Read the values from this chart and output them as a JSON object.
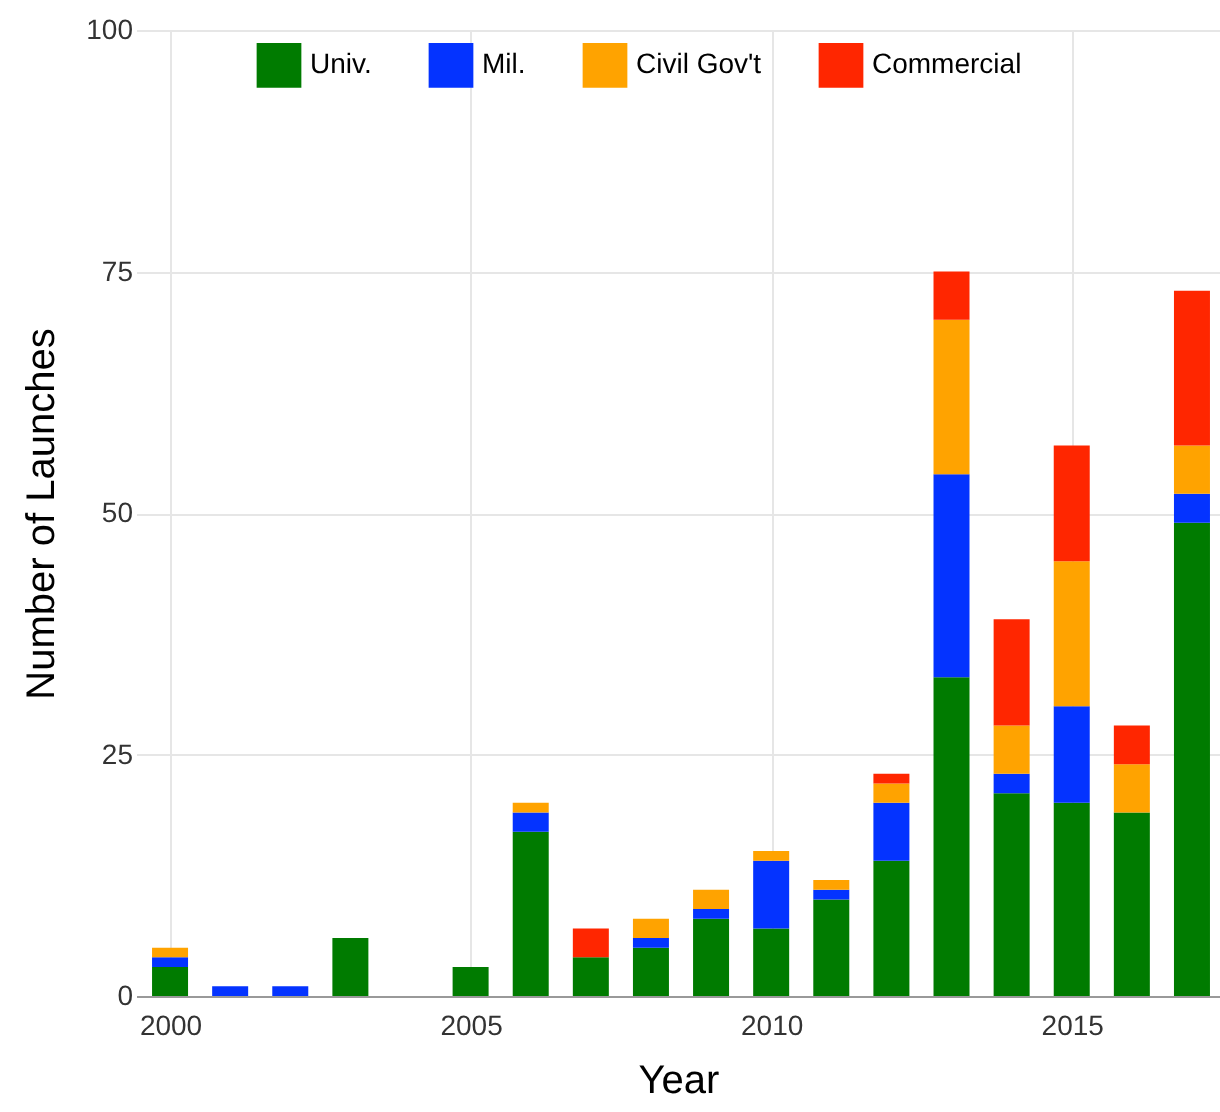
{
  "chart_data": {
    "type": "bar",
    "stacked": true,
    "xlabel": "Year",
    "ylabel": "Number of Launches",
    "x": [
      2000,
      2001,
      2002,
      2003,
      2004,
      2005,
      2006,
      2007,
      2008,
      2009,
      2010,
      2011,
      2012,
      2013,
      2014,
      2015,
      2016,
      2017
    ],
    "series": [
      {
        "name": "Univ.",
        "color": "#007b00",
        "values": [
          3,
          0,
          0,
          6,
          0,
          3,
          17,
          4,
          5,
          8,
          7,
          10,
          14,
          33,
          21,
          20,
          19,
          49
        ]
      },
      {
        "name": "Mil.",
        "color": "#0433ff",
        "values": [
          1,
          1,
          1,
          0,
          0,
          0,
          2,
          0,
          1,
          1,
          7,
          1,
          6,
          21,
          2,
          10,
          0,
          3
        ]
      },
      {
        "name": "Civil Gov't",
        "color": "#ffa300",
        "values": [
          1,
          0,
          0,
          0,
          0,
          0,
          1,
          0,
          2,
          2,
          1,
          1,
          2,
          16,
          5,
          15,
          5,
          5
        ]
      },
      {
        "name": "Commercial",
        "color": "#ff2600",
        "values": [
          0,
          0,
          0,
          0,
          0,
          0,
          0,
          3,
          0,
          0,
          0,
          0,
          1,
          5,
          11,
          12,
          4,
          16
        ]
      }
    ],
    "xlim": [
      1999.6,
      2017.3
    ],
    "xticks": [
      2000,
      2005,
      2010,
      2015
    ],
    "ylim": [
      0,
      100
    ],
    "yticks": [
      0,
      25,
      50,
      75,
      100
    ],
    "grid": true,
    "legend": "top"
  }
}
